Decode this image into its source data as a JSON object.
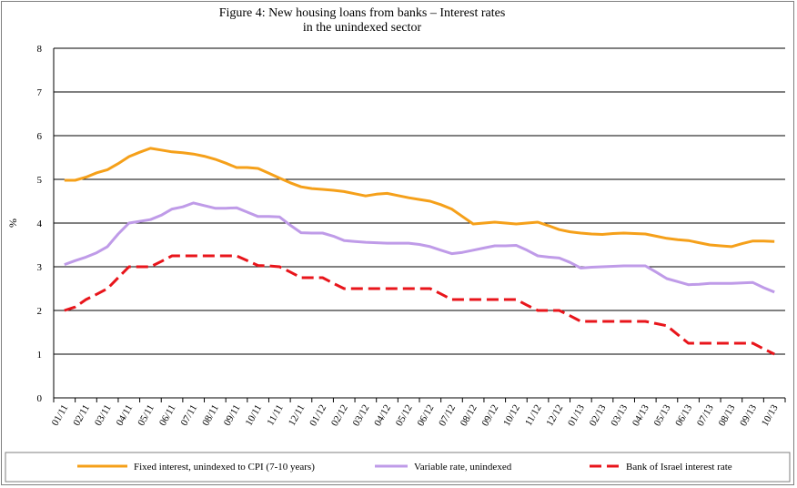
{
  "chart_data": {
    "type": "line",
    "title": [
      "Figure 4: New housing loans from banks – Interest rates",
      "in the unindexed sector"
    ],
    "ylabel": "%",
    "xlabel": "",
    "ylim": [
      0,
      8
    ],
    "yticks": [
      0,
      1,
      2,
      3,
      4,
      5,
      6,
      7,
      8
    ],
    "grid": "horizontal",
    "legend_position": "bottom",
    "x_tick_labels": [
      "01/11",
      "02/11",
      "03/11",
      "04/11",
      "05/11",
      "06/11",
      "07/11",
      "08/11",
      "09/11",
      "10/11",
      "11/11",
      "12/11",
      "01/12",
      "02/12",
      "03/12",
      "04/12",
      "05/12",
      "06/12",
      "07/12",
      "08/12",
      "09/12",
      "10/12",
      "11/12",
      "12/12",
      "01/13",
      "02/13",
      "03/13",
      "04/13",
      "05/13",
      "06/13",
      "07/13",
      "08/13",
      "09/13",
      "10/13"
    ],
    "x": [
      "01/11",
      "",
      "02/11",
      "",
      "03/11",
      "",
      "04/11",
      "",
      "05/11",
      "",
      "06/11",
      "",
      "07/11",
      "",
      "08/11",
      "",
      "09/11",
      "",
      "10/11",
      "",
      "11/11",
      "",
      "12/11",
      "",
      "01/12",
      "",
      "02/12",
      "",
      "03/12",
      "",
      "04/12",
      "",
      "05/12",
      "",
      "06/12",
      "",
      "07/12",
      "",
      "08/12",
      "",
      "09/12",
      "",
      "10/12",
      "",
      "11/12",
      "",
      "12/12",
      "",
      "01/13",
      "",
      "02/13",
      "",
      "03/13",
      "",
      "04/13",
      "",
      "05/13",
      "",
      "06/13",
      "",
      "07/13",
      "",
      "08/13",
      "",
      "09/13",
      "",
      "10/13"
    ],
    "series": [
      {
        "name": "Fixed interest, unindexed to CPI (7-10 years)",
        "color": "#f5a01a",
        "style": "solid",
        "values": [
          4.98,
          4.98,
          5.05,
          5.15,
          5.22,
          5.36,
          5.52,
          5.62,
          5.71,
          5.67,
          5.63,
          5.61,
          5.58,
          5.53,
          5.46,
          5.37,
          5.27,
          5.27,
          5.25,
          5.14,
          5.03,
          4.92,
          4.83,
          4.79,
          4.77,
          4.75,
          4.72,
          4.67,
          4.62,
          4.66,
          4.68,
          4.63,
          4.58,
          4.54,
          4.5,
          4.42,
          4.32,
          4.15,
          3.98,
          4.0,
          4.02,
          4.0,
          3.98,
          4.0,
          4.02,
          3.94,
          3.85,
          3.8,
          3.77,
          3.75,
          3.74,
          3.76,
          3.77,
          3.76,
          3.75,
          3.7,
          3.65,
          3.62,
          3.6,
          3.55,
          3.5,
          3.48,
          3.46,
          3.53,
          3.59,
          3.59,
          3.58
        ]
      },
      {
        "name": "Variable rate, unindexed",
        "color": "#bf9be8",
        "style": "solid",
        "values": [
          3.05,
          3.14,
          3.22,
          3.32,
          3.46,
          3.75,
          4.0,
          4.04,
          4.08,
          4.18,
          4.32,
          4.37,
          4.46,
          4.4,
          4.34,
          4.34,
          4.35,
          4.25,
          4.15,
          4.15,
          4.14,
          3.95,
          3.78,
          3.77,
          3.77,
          3.7,
          3.6,
          3.58,
          3.56,
          3.55,
          3.54,
          3.54,
          3.54,
          3.51,
          3.46,
          3.38,
          3.3,
          3.33,
          3.38,
          3.43,
          3.48,
          3.48,
          3.49,
          3.38,
          3.25,
          3.22,
          3.2,
          3.1,
          2.97,
          2.99,
          3.0,
          3.01,
          3.02,
          3.02,
          3.02,
          2.88,
          2.73,
          2.66,
          2.59,
          2.6,
          2.62,
          2.62,
          2.62,
          2.63,
          2.64,
          2.52,
          2.42
        ]
      },
      {
        "name": "Bank of Israel interest rate",
        "color": "#e8151b",
        "style": "dashed",
        "values": [
          2.0,
          2.08,
          2.25,
          2.37,
          2.5,
          2.75,
          3.0,
          3.0,
          3.0,
          3.12,
          3.25,
          3.25,
          3.25,
          3.25,
          3.25,
          3.25,
          3.25,
          3.14,
          3.03,
          3.02,
          3.0,
          2.88,
          2.75,
          2.75,
          2.75,
          2.62,
          2.5,
          2.5,
          2.5,
          2.5,
          2.5,
          2.5,
          2.5,
          2.5,
          2.5,
          2.38,
          2.25,
          2.25,
          2.25,
          2.25,
          2.25,
          2.25,
          2.25,
          2.12,
          2.0,
          2.0,
          2.0,
          1.88,
          1.75,
          1.75,
          1.75,
          1.75,
          1.75,
          1.75,
          1.75,
          1.7,
          1.65,
          1.45,
          1.25,
          1.25,
          1.25,
          1.25,
          1.25,
          1.25,
          1.25,
          1.12,
          1.0
        ]
      }
    ]
  }
}
